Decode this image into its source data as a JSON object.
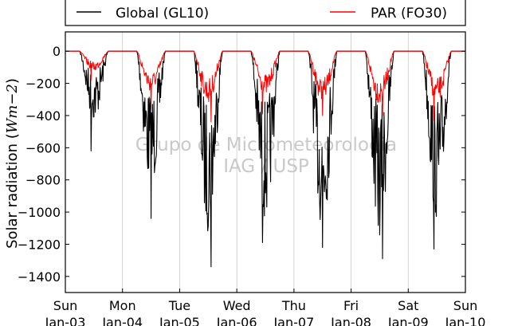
{
  "chart_data": {
    "type": "line",
    "title": "",
    "xlabel": "",
    "ylabel": "Solar radiation (Wm-2)",
    "ylim": [
      -1500,
      120
    ],
    "yticks": [
      "0",
      "-200",
      "-400",
      "-600",
      "-800",
      "-1000",
      "-1200",
      "-1400"
    ],
    "xticks": [
      {
        "day": "Sun",
        "date": "Jan-03"
      },
      {
        "day": "Mon",
        "date": "Jan-04"
      },
      {
        "day": "Tue",
        "date": "Jan-05"
      },
      {
        "day": "Wed",
        "date": "Jan-06"
      },
      {
        "day": "Thu",
        "date": "Jan-07"
      },
      {
        "day": "Fri",
        "date": "Jan-08"
      },
      {
        "day": "Sat",
        "date": "Jan-09"
      },
      {
        "day": "Sun",
        "date": "Jan-10"
      }
    ],
    "xgrid": true,
    "ygrid": false,
    "legend_position": "top",
    "watermark": [
      "Grupo de Micrometeorologia",
      "IAG / USP"
    ],
    "series": [
      {
        "name": "Global (GL10)",
        "color": "#000000",
        "daily_min": [
          -620,
          -1040,
          -1340,
          -1190,
          -1220,
          -1290,
          -1230
        ],
        "daily_typical_peak": [
          -350,
          -700,
          -900,
          -850,
          -900,
          -950,
          -850
        ]
      },
      {
        "name": "PAR (FO30)",
        "color": "#ff0000",
        "daily_min": [
          -180,
          -360,
          -440,
          -390,
          -400,
          -400,
          -430
        ],
        "daily_typical_peak": [
          -110,
          -220,
          -280,
          -240,
          -280,
          -290,
          -280
        ]
      }
    ]
  }
}
